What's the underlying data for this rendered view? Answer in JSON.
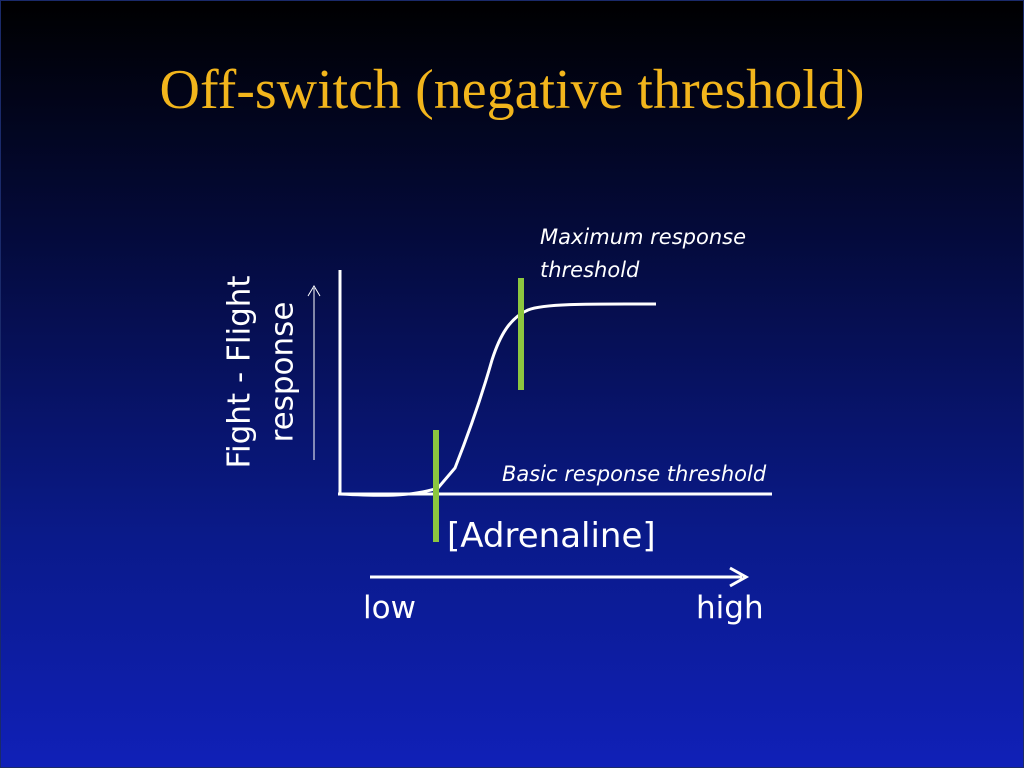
{
  "slide": {
    "title": "Off-switch (negative threshold)",
    "y_axis_label_line1": "Fight - Flight",
    "y_axis_label_line2": "response",
    "x_axis_label": "[Adrenaline]",
    "x_low": "low",
    "x_high": "high",
    "max_threshold_line1": "Maximum response",
    "max_threshold_line2": "threshold",
    "basic_threshold": "Basic response threshold"
  },
  "colors": {
    "title": "#f2b51c",
    "threshold_marker": "#8cc63f",
    "curve": "#ffffff",
    "background_top": "#000000",
    "background_bottom": "#1020b8"
  }
}
